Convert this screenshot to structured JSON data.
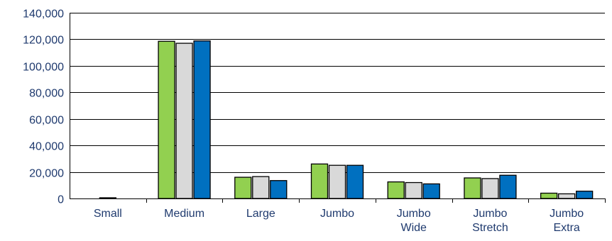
{
  "chart_data": {
    "type": "bar",
    "title": "",
    "xlabel": "",
    "ylabel": "",
    "ylim": [
      0,
      140000
    ],
    "yticks": [
      0,
      20000,
      40000,
      60000,
      80000,
      100000,
      120000,
      140000
    ],
    "ytick_labels": [
      "0",
      "20,000",
      "40,000",
      "60,000",
      "80,000",
      "100,000",
      "120,000",
      "140,000"
    ],
    "grid": true,
    "legend": "none",
    "categories": [
      [
        "Small"
      ],
      [
        "Medium"
      ],
      [
        "Large"
      ],
      [
        "Jumbo"
      ],
      [
        "Jumbo",
        "Wide"
      ],
      [
        "Jumbo",
        "Stretch"
      ],
      [
        "Jumbo",
        "Extra"
      ]
    ],
    "series": [
      {
        "color": "#92d050",
        "values": [
          0,
          118500,
          16000,
          26000,
          12500,
          15500,
          4000
        ]
      },
      {
        "color": "#d9d9d9",
        "values": [
          300,
          117000,
          16500,
          25000,
          12000,
          15000,
          3500
        ]
      },
      {
        "color": "#0070c0",
        "values": [
          0,
          118800,
          13500,
          25000,
          11000,
          17500,
          5500
        ]
      }
    ],
    "colors": {
      "axis_text": "#1f3a6e",
      "gridline": "#000000",
      "bar_outline": "#000000"
    }
  }
}
